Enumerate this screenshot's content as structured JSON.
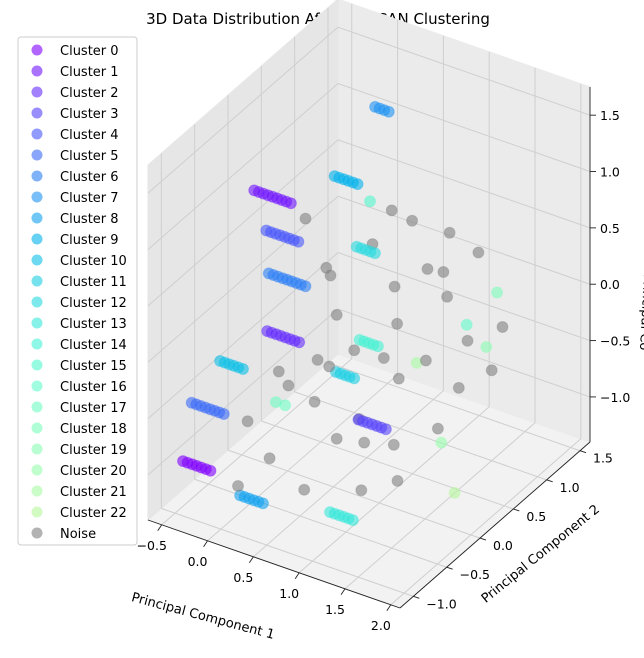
{
  "chart_data": {
    "type": "scatter",
    "projection": "3d",
    "title": "3D Data Distribution After DBSCAN Clustering",
    "xlabel": "Principal Component 1",
    "ylabel": "Principal Component 2",
    "zlabel": "Principal Co",
    "x_ticks": [
      "−0.5",
      "0.0",
      "0.5",
      "1.0",
      "1.5",
      "2.0"
    ],
    "y_ticks": [
      "−1.0",
      "−0.5",
      "0.0",
      "0.5",
      "1.0",
      "1.5"
    ],
    "z_ticks": [
      "−1.0",
      "−0.5",
      "0.0",
      "0.5",
      "1.0",
      "1.5"
    ],
    "x_tick_values": [
      -0.5,
      0.0,
      0.5,
      1.0,
      1.5,
      2.0
    ],
    "y_tick_values": [
      -1.0,
      -0.5,
      0.0,
      0.5,
      1.0,
      1.5
    ],
    "z_tick_values": [
      -1.0,
      -0.5,
      0.0,
      0.5,
      1.0,
      1.5
    ],
    "xlim": [
      -0.65,
      2.1
    ],
    "ylim": [
      -1.2,
      1.65
    ],
    "zlim": [
      -1.4,
      1.75
    ],
    "grid": true,
    "legend_position": "top-left",
    "marker_alpha": 0.6,
    "series": [
      {
        "name": "Cluster 0",
        "color": "#8000ff",
        "points": [
          [
            -0.45,
            -0.95,
            -0.95
          ],
          [
            -0.4,
            -0.95,
            -0.95
          ],
          [
            -0.35,
            -0.95,
            -0.95
          ],
          [
            -0.3,
            -0.95,
            -0.95
          ],
          [
            -0.25,
            -0.95,
            -0.95
          ],
          [
            -0.2,
            -0.95,
            -0.95
          ],
          [
            -0.15,
            -0.95,
            -0.95
          ]
        ]
      },
      {
        "name": "Cluster 1",
        "color": "#7216ff",
        "points": [
          [
            -0.4,
            0.05,
            0.95
          ],
          [
            -0.35,
            0.05,
            0.95
          ],
          [
            -0.3,
            0.05,
            0.95
          ],
          [
            -0.25,
            0.05,
            0.95
          ],
          [
            -0.2,
            0.05,
            0.95
          ],
          [
            -0.15,
            0.05,
            0.95
          ],
          [
            -0.1,
            0.05,
            0.95
          ],
          [
            -0.05,
            0.05,
            0.95
          ],
          [
            0.0,
            0.05,
            0.95
          ]
        ]
      },
      {
        "name": "Cluster 2",
        "color": "#642cfe",
        "points": [
          [
            -0.15,
            -0.1,
            -0.15
          ],
          [
            -0.1,
            -0.1,
            -0.15
          ],
          [
            -0.05,
            -0.1,
            -0.15
          ],
          [
            0.0,
            -0.1,
            -0.15
          ],
          [
            0.05,
            -0.1,
            -0.15
          ],
          [
            0.1,
            -0.1,
            -0.15
          ],
          [
            0.15,
            -0.1,
            -0.15
          ],
          [
            0.2,
            -0.1,
            -0.15
          ]
        ]
      },
      {
        "name": "Cluster 3",
        "color": "#5642fc",
        "points": [
          [
            1.1,
            -0.45,
            -0.4
          ],
          [
            1.15,
            -0.45,
            -0.4
          ],
          [
            1.2,
            -0.45,
            -0.4
          ],
          [
            1.25,
            -0.45,
            -0.4
          ],
          [
            1.3,
            -0.45,
            -0.4
          ],
          [
            1.35,
            -0.45,
            -0.4
          ],
          [
            1.4,
            -0.45,
            -0.4
          ]
        ]
      },
      {
        "name": "Cluster 4",
        "color": "#4856fb",
        "points": [
          [
            -0.45,
            0.3,
            0.45
          ],
          [
            -0.4,
            0.3,
            0.45
          ],
          [
            -0.35,
            0.3,
            0.45
          ],
          [
            -0.3,
            0.3,
            0.45
          ],
          [
            -0.25,
            0.3,
            0.45
          ],
          [
            -0.2,
            0.3,
            0.45
          ],
          [
            -0.15,
            0.3,
            0.45
          ],
          [
            -0.1,
            0.3,
            0.45
          ]
        ]
      },
      {
        "name": "Cluster 5",
        "color": "#3a6bf9",
        "points": [
          [
            -0.5,
            -0.75,
            -0.55
          ],
          [
            -0.45,
            -0.75,
            -0.55
          ],
          [
            -0.4,
            -0.75,
            -0.55
          ],
          [
            -0.35,
            -0.75,
            -0.55
          ],
          [
            -0.3,
            -0.75,
            -0.55
          ],
          [
            -0.25,
            -0.75,
            -0.55
          ],
          [
            -0.2,
            -0.75,
            -0.55
          ],
          [
            -0.15,
            -0.75,
            -0.55
          ]
        ]
      },
      {
        "name": "Cluster 6",
        "color": "#2c7ff6",
        "points": [
          [
            -0.35,
            0.2,
            0.15
          ],
          [
            -0.3,
            0.2,
            0.15
          ],
          [
            -0.25,
            0.2,
            0.15
          ],
          [
            -0.2,
            0.2,
            0.15
          ],
          [
            -0.15,
            0.2,
            0.15
          ],
          [
            -0.1,
            0.2,
            0.15
          ],
          [
            -0.05,
            0.2,
            0.15
          ],
          [
            0.0,
            0.2,
            0.15
          ],
          [
            0.05,
            0.2,
            0.15
          ]
        ]
      },
      {
        "name": "Cluster 7",
        "color": "#1e92f3",
        "points": [
          [
            0.3,
            0.9,
            1.45
          ],
          [
            0.35,
            0.9,
            1.45
          ],
          [
            0.4,
            0.9,
            1.45
          ],
          [
            0.45,
            0.9,
            1.45
          ]
        ]
      },
      {
        "name": "Cluster 8",
        "color": "#10a2f0",
        "points": [
          [
            0.1,
            -0.85,
            -1.15
          ],
          [
            0.15,
            -0.85,
            -1.15
          ],
          [
            0.2,
            -0.85,
            -1.15
          ],
          [
            0.25,
            -0.85,
            -1.15
          ],
          [
            0.3,
            -0.85,
            -1.15
          ],
          [
            0.35,
            -0.85,
            -1.15
          ]
        ]
      },
      {
        "name": "Cluster 9",
        "color": "#02b2ec",
        "points": [
          [
            0.15,
            0.5,
            1.0
          ],
          [
            0.2,
            0.5,
            1.0
          ],
          [
            0.25,
            0.5,
            1.0
          ],
          [
            0.3,
            0.5,
            1.0
          ],
          [
            0.35,
            0.5,
            1.0
          ],
          [
            0.4,
            0.5,
            1.0
          ]
        ]
      },
      {
        "name": "Cluster 10",
        "color": "#0cc0e8",
        "points": [
          [
            -0.3,
            -0.6,
            -0.2
          ],
          [
            -0.25,
            -0.6,
            -0.2
          ],
          [
            -0.2,
            -0.6,
            -0.2
          ],
          [
            -0.15,
            -0.6,
            -0.2
          ],
          [
            -0.1,
            -0.6,
            -0.2
          ],
          [
            -0.05,
            -0.6,
            -0.2
          ]
        ]
      },
      {
        "name": "Cluster 11",
        "color": "#1acfe3",
        "points": [
          [
            0.6,
            -0.1,
            -0.3
          ],
          [
            0.65,
            -0.1,
            -0.3
          ],
          [
            0.7,
            -0.1,
            -0.3
          ],
          [
            0.75,
            -0.1,
            -0.3
          ],
          [
            0.8,
            -0.1,
            -0.3
          ]
        ]
      },
      {
        "name": "Cluster 12",
        "color": "#28dbdf",
        "points": [
          [
            0.5,
            0.35,
            0.55
          ],
          [
            0.55,
            0.35,
            0.55
          ],
          [
            0.6,
            0.35,
            0.55
          ],
          [
            0.65,
            0.35,
            0.55
          ],
          [
            0.7,
            0.35,
            0.55
          ]
        ]
      },
      {
        "name": "Cluster 13",
        "color": "#36e7da",
        "points": [
          [
            0.9,
            -0.6,
            -1.2
          ],
          [
            0.95,
            -0.6,
            -1.2
          ],
          [
            1.0,
            -0.6,
            -1.2
          ],
          [
            1.05,
            -0.6,
            -1.2
          ],
          [
            1.1,
            -0.6,
            -1.2
          ],
          [
            1.15,
            -0.6,
            -1.2
          ]
        ]
      },
      {
        "name": "Cluster 14",
        "color": "#44f1d4",
        "points": [
          [
            0.75,
            0.05,
            -0.05
          ],
          [
            0.8,
            0.05,
            -0.05
          ],
          [
            0.85,
            0.05,
            -0.05
          ],
          [
            0.9,
            0.05,
            -0.05
          ],
          [
            0.95,
            0.05,
            -0.05
          ]
        ]
      },
      {
        "name": "Cluster 15",
        "color": "#52f8cf",
        "points": [
          [
            0.5,
            0.55,
            0.85
          ]
        ]
      },
      {
        "name": "Cluster 16",
        "color": "#60fcc9",
        "points": [
          [
            1.3,
            0.9,
            -0.2
          ]
        ]
      },
      {
        "name": "Cluster 17",
        "color": "#6efec2",
        "points": [
          [
            0.2,
            -0.45,
            -0.5
          ],
          [
            0.3,
            -0.45,
            -0.5
          ]
        ]
      },
      {
        "name": "Cluster 18",
        "color": "#7cfebb",
        "points": [
          [
            1.45,
            1.15,
            0.0
          ]
        ]
      },
      {
        "name": "Cluster 19",
        "color": "#8afeb4",
        "points": [
          [
            1.55,
            0.85,
            -0.3
          ]
        ]
      },
      {
        "name": "Cluster 20",
        "color": "#98feac",
        "points": [
          [
            1.75,
            -0.1,
            -0.6
          ]
        ]
      },
      {
        "name": "Cluster 21",
        "color": "#a6fca4",
        "points": [
          [
            1.3,
            0.15,
            -0.15
          ]
        ]
      },
      {
        "name": "Cluster 22",
        "color": "#b4f89c",
        "points": [
          [
            1.75,
            0.1,
            -1.15
          ]
        ]
      },
      {
        "name": "Noise",
        "color": "#808080",
        "points": [
          [
            0.05,
            0.2,
            0.75
          ],
          [
            0.35,
            0.1,
            0.45
          ],
          [
            0.6,
            0.45,
            0.55
          ],
          [
            0.85,
            0.7,
            0.7
          ],
          [
            0.95,
            0.3,
            0.35
          ],
          [
            1.2,
            0.45,
            0.5
          ],
          [
            1.05,
            0.2,
            0.1
          ],
          [
            1.3,
            0.55,
            0.45
          ],
          [
            1.45,
            0.4,
            0.35
          ],
          [
            1.5,
            0.8,
            0.55
          ],
          [
            0.6,
            -0.2,
            -0.2
          ],
          [
            0.8,
            -0.1,
            -0.05
          ],
          [
            1.05,
            0.0,
            -0.1
          ],
          [
            1.25,
            -0.05,
            -0.2
          ],
          [
            1.4,
            0.15,
            -0.1
          ],
          [
            1.6,
            0.5,
            -0.05
          ],
          [
            1.8,
            0.75,
            0.0
          ],
          [
            0.3,
            -0.4,
            -0.35
          ],
          [
            0.55,
            -0.35,
            -0.45
          ],
          [
            0.9,
            -0.5,
            -0.6
          ],
          [
            1.2,
            -0.5,
            -0.55
          ],
          [
            1.45,
            -0.4,
            -0.55
          ],
          [
            1.75,
            -0.15,
            -0.45
          ],
          [
            0.0,
            -0.6,
            -0.65
          ],
          [
            0.35,
            -0.75,
            -0.8
          ],
          [
            0.8,
            -0.85,
            -0.9
          ],
          [
            1.35,
            -0.75,
            -0.8
          ],
          [
            1.6,
            -0.55,
            -0.75
          ],
          [
            0.05,
            -0.2,
            -0.4
          ],
          [
            0.4,
            -0.1,
            -0.25
          ],
          [
            1.15,
            0.85,
            0.6
          ],
          [
            1.65,
            0.3,
            -0.35
          ],
          [
            1.9,
            0.45,
            -0.2
          ],
          [
            0.25,
            0.3,
            0.25
          ],
          [
            0.5,
            0.05,
            0.1
          ],
          [
            0.7,
            0.6,
            0.8
          ],
          [
            1.0,
            -0.3,
            -0.5
          ],
          [
            0.15,
            -0.95,
            -1.0
          ]
        ]
      }
    ]
  }
}
